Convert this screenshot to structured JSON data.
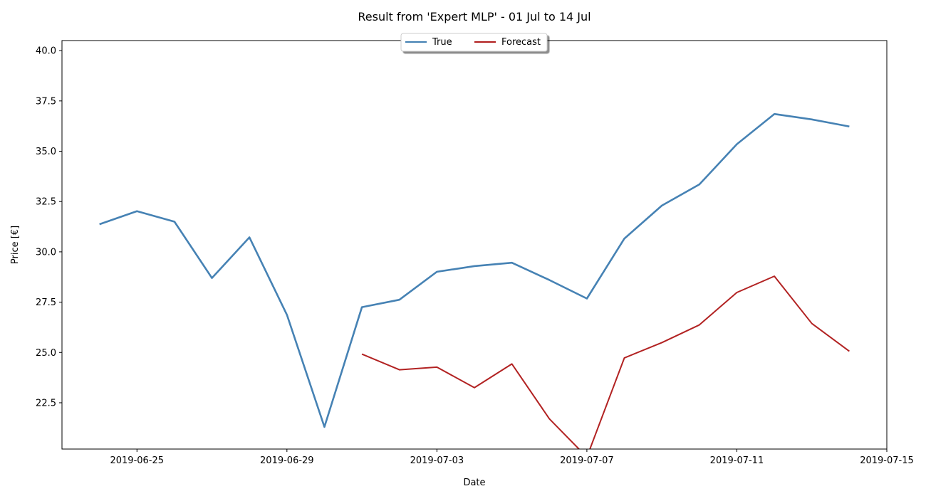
{
  "chart_data": {
    "type": "line",
    "title": "Result from 'Expert MLP' - 01 Jul to 14 Jul",
    "xlabel": "Date",
    "ylabel": "Price [€]",
    "xlim": [
      "2019-06-23",
      "2019-07-15"
    ],
    "ylim": [
      20.2,
      40.5
    ],
    "x_ticks": [
      "2019-06-25",
      "2019-06-29",
      "2019-07-03",
      "2019-07-07",
      "2019-07-11",
      "2019-07-15"
    ],
    "y_ticks": [
      "22.5",
      "25.0",
      "27.5",
      "30.0",
      "32.5",
      "35.0",
      "37.5",
      "40.0"
    ],
    "grid": false,
    "legend_position": "top-center",
    "series": [
      {
        "name": "True",
        "color": "#4682b4",
        "x": [
          "2019-06-24",
          "2019-06-25",
          "2019-06-26",
          "2019-06-27",
          "2019-06-28",
          "2019-06-29",
          "2019-06-30",
          "2019-07-01",
          "2019-07-02",
          "2019-07-03",
          "2019-07-04",
          "2019-07-05",
          "2019-07-06",
          "2019-07-07",
          "2019-07-08",
          "2019-07-09",
          "2019-07-10",
          "2019-07-11",
          "2019-07-12",
          "2019-07-13",
          "2019-07-14"
        ],
        "values": [
          31.37,
          32.02,
          31.5,
          28.7,
          30.72,
          26.87,
          21.3,
          27.25,
          27.62,
          29.01,
          29.29,
          29.46,
          28.6,
          27.68,
          30.66,
          32.3,
          33.35,
          35.35,
          36.85,
          36.58,
          36.23
        ]
      },
      {
        "name": "Forecast",
        "color": "#b22222",
        "x": [
          "2019-07-01",
          "2019-07-02",
          "2019-07-03",
          "2019-07-04",
          "2019-07-05",
          "2019-07-06",
          "2019-07-07",
          "2019-07-08",
          "2019-07-09",
          "2019-07-10",
          "2019-07-11",
          "2019-07-12",
          "2019-07-13",
          "2019-07-14"
        ],
        "values": [
          24.92,
          24.14,
          24.27,
          23.25,
          24.43,
          21.7,
          19.8,
          24.73,
          25.49,
          26.37,
          27.98,
          28.79,
          26.44,
          25.06
        ]
      }
    ]
  }
}
